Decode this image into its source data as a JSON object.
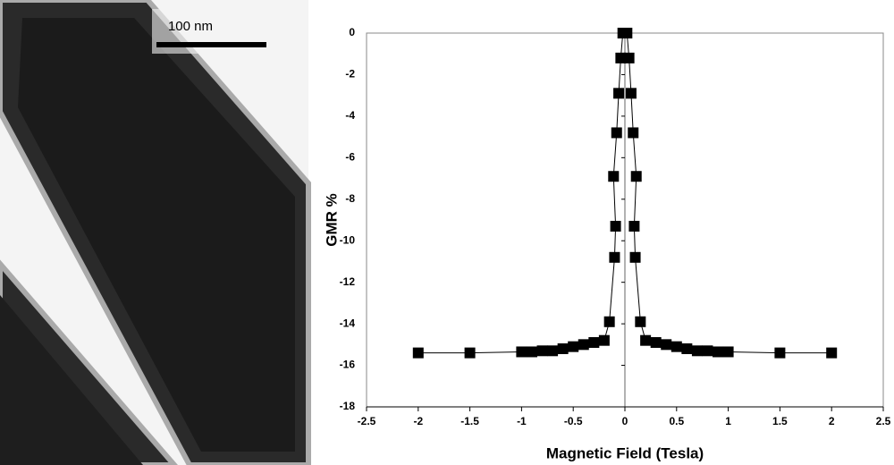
{
  "image": {
    "scale_label": "100 nm"
  },
  "chart_data": {
    "type": "line",
    "x_label": "Magnetic Field (Tesla)",
    "y_label": "GMR %",
    "x": [
      -2,
      -1.5,
      -1,
      -0.9,
      -0.8,
      -0.7,
      -0.6,
      -0.5,
      -0.4,
      -0.3,
      -0.2,
      -0.15,
      -0.1,
      -0.09,
      -0.11,
      -0.08,
      -0.06,
      -0.04,
      -0.02,
      0.02,
      0.04,
      0.06,
      0.08,
      0.11,
      0.09,
      0.1,
      0.15,
      0.2,
      0.3,
      0.4,
      0.5,
      0.6,
      0.7,
      0.8,
      0.9,
      1,
      1.5,
      2
    ],
    "values": [
      -15.4,
      -15.4,
      -15.35,
      -15.35,
      -15.3,
      -15.3,
      -15.2,
      -15.1,
      -15.0,
      -14.9,
      -14.8,
      -13.9,
      -10.8,
      -9.3,
      -6.9,
      -4.8,
      -2.9,
      -1.2,
      0,
      0,
      -1.2,
      -2.9,
      -4.8,
      -6.9,
      -9.3,
      -10.8,
      -13.9,
      -14.8,
      -14.9,
      -15.0,
      -15.1,
      -15.2,
      -15.3,
      -15.3,
      -15.35,
      -15.35,
      -15.4,
      -15.4
    ],
    "color": "#000000",
    "xlim": [
      -2.5,
      2.5
    ],
    "xticks": [
      -2.5,
      -2,
      -1.5,
      -1,
      -0.5,
      0,
      0.5,
      1,
      1.5,
      2,
      2.5
    ],
    "ylim": [
      -18,
      0
    ],
    "yticks": [
      0,
      -2,
      -4,
      -6,
      -8,
      -10,
      -12,
      -14,
      -16,
      -18
    ]
  }
}
